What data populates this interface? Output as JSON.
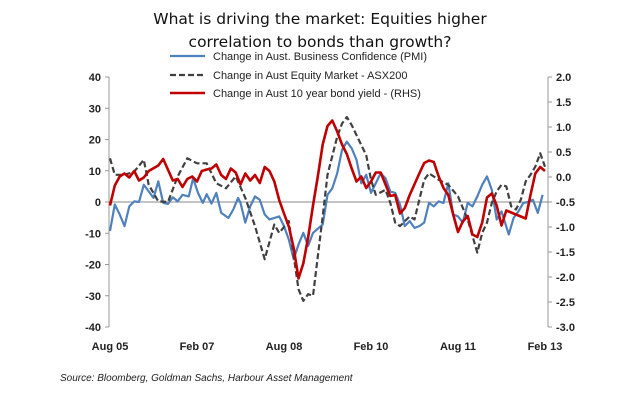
{
  "chart_data": {
    "type": "line",
    "title": "What is driving the market: Equities higher correlation to bonds than growth?",
    "title_lines": [
      "What is driving the market: Equities higher",
      "correlation to bonds than growth?"
    ],
    "x_unit": "months since Aug 05",
    "x_ticks": [
      {
        "m": 0,
        "label": "Aug 05"
      },
      {
        "m": 18,
        "label": "Feb 07"
      },
      {
        "m": 36,
        "label": "Aug 08"
      },
      {
        "m": 54,
        "label": "Feb 10"
      },
      {
        "m": 72,
        "label": "Aug 11"
      },
      {
        "m": 90,
        "label": "Feb 13"
      }
    ],
    "y_left": {
      "range": [
        -40,
        40
      ],
      "ticks": [
        "40",
        "30",
        "20",
        "10",
        "0",
        "-10",
        "-20",
        "-30",
        "-40"
      ]
    },
    "y_right": {
      "range": [
        -3.0,
        2.0
      ],
      "ticks": [
        "2.0",
        "1.5",
        "1.0",
        "0.5",
        "0.0",
        "-0.5",
        "-1.0",
        "-1.5",
        "-2.0",
        "-2.5",
        "-3.0"
      ]
    },
    "legend_placement": "top-center",
    "series": [
      {
        "name": "Change in Aust. Business Confidence (PMI)",
        "axis": "left",
        "color": "#4f81bd",
        "dash": false,
        "points": [
          [
            0,
            -9.3
          ],
          [
            1,
            -0.8
          ],
          [
            2,
            -4
          ],
          [
            3,
            -7.7
          ],
          [
            4,
            -1.4
          ],
          [
            5,
            0.2
          ],
          [
            6,
            0
          ],
          [
            7,
            5.5
          ],
          [
            8,
            3.4
          ],
          [
            9,
            1.3
          ],
          [
            10,
            6.6
          ],
          [
            11,
            -0.3
          ],
          [
            12,
            -0.6
          ],
          [
            13,
            1.5
          ],
          [
            14,
            0.2
          ],
          [
            15,
            2.3
          ],
          [
            16.3,
            1.8
          ],
          [
            17.2,
            7.6
          ],
          [
            18.2,
            2.9
          ],
          [
            19.2,
            -0.3
          ],
          [
            20,
            2.5
          ],
          [
            21,
            -0.5
          ],
          [
            22,
            2.9
          ],
          [
            23,
            -3.5
          ],
          [
            24.5,
            -5.1
          ],
          [
            25.5,
            -2.4
          ],
          [
            26.5,
            1.3
          ],
          [
            27,
            -0.3
          ],
          [
            28,
            -6.6
          ],
          [
            29,
            -1.4
          ],
          [
            30,
            1.8
          ],
          [
            31,
            0.7
          ],
          [
            32,
            -4
          ],
          [
            33,
            -5.6
          ],
          [
            35,
            -4.6
          ],
          [
            36,
            -7.7
          ],
          [
            37,
            -12
          ],
          [
            38,
            -18.3
          ],
          [
            39,
            -13.6
          ],
          [
            40,
            -9.9
          ],
          [
            41,
            -14
          ],
          [
            42,
            -9.9
          ],
          [
            44,
            -7.2
          ],
          [
            45,
            2.3
          ],
          [
            46,
            4.4
          ],
          [
            47,
            9.2
          ],
          [
            48,
            16.6
          ],
          [
            49,
            19.3
          ],
          [
            50,
            17.2
          ],
          [
            51,
            13.5
          ],
          [
            52,
            6
          ],
          [
            53,
            8.7
          ],
          [
            54,
            2.9
          ],
          [
            56,
            9.2
          ],
          [
            57,
            7.6
          ],
          [
            58,
            3.4
          ],
          [
            59,
            2.9
          ],
          [
            60,
            -0.8
          ],
          [
            61,
            -7.7
          ],
          [
            62,
            -6.1
          ],
          [
            63,
            -8.3
          ],
          [
            64,
            -7.7
          ],
          [
            65,
            -6.6
          ],
          [
            66,
            -0.3
          ],
          [
            67,
            -1.4
          ],
          [
            68,
            0.2
          ],
          [
            69,
            -0.3
          ],
          [
            70,
            6
          ],
          [
            71,
            -4
          ],
          [
            72,
            -4.6
          ],
          [
            73,
            -6.6
          ],
          [
            74,
            -0.3
          ],
          [
            75,
            -1.4
          ],
          [
            76,
            1.8
          ],
          [
            77,
            5.5
          ],
          [
            78,
            8.2
          ],
          [
            79,
            3.9
          ],
          [
            80,
            -5.6
          ],
          [
            81,
            -3
          ],
          [
            82.5,
            -10.4
          ],
          [
            83.5,
            -5.1
          ],
          [
            84.5,
            -3
          ],
          [
            85.5,
            -0.3
          ],
          [
            86.5,
            0
          ],
          [
            87.5,
            0.7
          ],
          [
            88.5,
            -3.5
          ],
          [
            89.5,
            2.3
          ]
        ]
      },
      {
        "name": "Change in Aust Equity Market - ASX200",
        "axis": "left",
        "color": "#404040",
        "dash": true,
        "points": [
          [
            0,
            14
          ],
          [
            1,
            8.7
          ],
          [
            3,
            8.7
          ],
          [
            5,
            9.7
          ],
          [
            7,
            13.5
          ],
          [
            8,
            5.5
          ],
          [
            10,
            0.2
          ],
          [
            12,
            0
          ],
          [
            14,
            8.2
          ],
          [
            16,
            14
          ],
          [
            18,
            12.4
          ],
          [
            20,
            12.4
          ],
          [
            22,
            6
          ],
          [
            24,
            4.4
          ],
          [
            26,
            8.2
          ],
          [
            28,
            1.3
          ],
          [
            30,
            -7.7
          ],
          [
            32,
            -18.3
          ],
          [
            34,
            -7.2
          ],
          [
            35,
            -9.9
          ],
          [
            37,
            -6.1
          ],
          [
            38,
            -17.3
          ],
          [
            39,
            -27.9
          ],
          [
            40,
            -31.6
          ],
          [
            41,
            -29.5
          ],
          [
            42,
            -30
          ],
          [
            44,
            -4.6
          ],
          [
            45,
            8.7
          ],
          [
            47,
            20.9
          ],
          [
            48,
            25.1
          ],
          [
            49,
            27.2
          ],
          [
            50,
            24.6
          ],
          [
            52,
            18.2
          ],
          [
            53,
            15
          ],
          [
            54,
            7.1
          ],
          [
            55,
            2.3
          ],
          [
            57,
            3.9
          ],
          [
            58,
            -0.3
          ],
          [
            59,
            -6.6
          ],
          [
            60,
            -7.7
          ],
          [
            62,
            -4.6
          ],
          [
            63,
            -5.6
          ],
          [
            64,
            0.7
          ],
          [
            65,
            7.1
          ],
          [
            66,
            9.2
          ],
          [
            68,
            7.1
          ],
          [
            70,
            5.5
          ],
          [
            72,
            1.8
          ],
          [
            74,
            -5.6
          ],
          [
            76,
            -16.2
          ],
          [
            77,
            -9.9
          ],
          [
            78,
            -6.6
          ],
          [
            79,
            -0.3
          ],
          [
            80,
            3.4
          ],
          [
            81,
            5.5
          ],
          [
            82,
            5
          ],
          [
            83,
            -1.4
          ],
          [
            84,
            -2.4
          ],
          [
            85,
            0.7
          ],
          [
            86,
            6.6
          ],
          [
            87,
            8.7
          ],
          [
            88,
            11.3
          ],
          [
            89,
            15.6
          ],
          [
            90,
            11.3
          ]
        ]
      },
      {
        "name": "Change in Aust 10 year bond yield - (RHS)",
        "axis": "right",
        "color": "#c00000",
        "dash": false,
        "points": [
          [
            0,
            -0.57
          ],
          [
            1,
            -0.17
          ],
          [
            2,
            0.01
          ],
          [
            3,
            0.07
          ],
          [
            4,
            -0.01
          ],
          [
            5,
            0.12
          ],
          [
            6,
            -0.07
          ],
          [
            7,
            -0.01
          ],
          [
            8,
            0.12
          ],
          [
            10,
            0.23
          ],
          [
            11,
            0.36
          ],
          [
            13,
            -0.07
          ],
          [
            14,
            -0.04
          ],
          [
            15,
            -0.2
          ],
          [
            16,
            -0.04
          ],
          [
            17,
            0.01
          ],
          [
            18,
            -0.09
          ],
          [
            19,
            0.12
          ],
          [
            20,
            0.15
          ],
          [
            21,
            0.17
          ],
          [
            22,
            0.25
          ],
          [
            23,
            0.04
          ],
          [
            24,
            -0.04
          ],
          [
            25,
            0.17
          ],
          [
            26,
            0.09
          ],
          [
            27,
            -0.15
          ],
          [
            28,
            0.07
          ],
          [
            29,
            -0.07
          ],
          [
            30,
            0.04
          ],
          [
            31,
            -0.12
          ],
          [
            32,
            0.2
          ],
          [
            33,
            0.12
          ],
          [
            34,
            -0.09
          ],
          [
            35,
            -0.46
          ],
          [
            36,
            -0.73
          ],
          [
            37,
            -0.99
          ],
          [
            38,
            -1.42
          ],
          [
            39,
            -2.03
          ],
          [
            40,
            -1.73
          ],
          [
            41,
            -1.2
          ],
          [
            42,
            -0.57
          ],
          [
            43,
            0.01
          ],
          [
            44,
            0.65
          ],
          [
            45,
            1.02
          ],
          [
            46,
            1.13
          ],
          [
            47,
            0.91
          ],
          [
            48,
            0.65
          ],
          [
            49,
            0.46
          ],
          [
            50,
            0.17
          ],
          [
            51,
            -0.09
          ],
          [
            52,
            0.01
          ],
          [
            53,
            -0.22
          ],
          [
            54,
            -0.09
          ],
          [
            55,
            0.09
          ],
          [
            56,
            0.09
          ],
          [
            57,
            -0.15
          ],
          [
            58,
            -0.38
          ],
          [
            59,
            -0.36
          ],
          [
            60,
            -0.73
          ],
          [
            61,
            -0.62
          ],
          [
            62,
            -0.36
          ],
          [
            64,
            0.07
          ],
          [
            65,
            0.28
          ],
          [
            66,
            0.33
          ],
          [
            67,
            0.3
          ],
          [
            68,
            0.01
          ],
          [
            69,
            -0.22
          ],
          [
            70,
            -0.36
          ],
          [
            71,
            -0.75
          ],
          [
            72,
            -1.1
          ],
          [
            73,
            -0.89
          ],
          [
            74,
            -0.78
          ],
          [
            75,
            -1.15
          ],
          [
            76,
            -1.2
          ],
          [
            77,
            -0.91
          ],
          [
            78,
            -0.41
          ],
          [
            79,
            -0.33
          ],
          [
            80,
            -0.57
          ],
          [
            81,
            -0.97
          ],
          [
            82,
            -0.67
          ],
          [
            84,
            -0.75
          ],
          [
            86,
            -0.83
          ],
          [
            87,
            -0.36
          ],
          [
            88,
            0.07
          ],
          [
            89,
            0.2
          ],
          [
            90,
            0.12
          ]
        ]
      }
    ]
  },
  "source": "Source: Bloomberg, Goldman Sachs, Harbour Asset Management"
}
